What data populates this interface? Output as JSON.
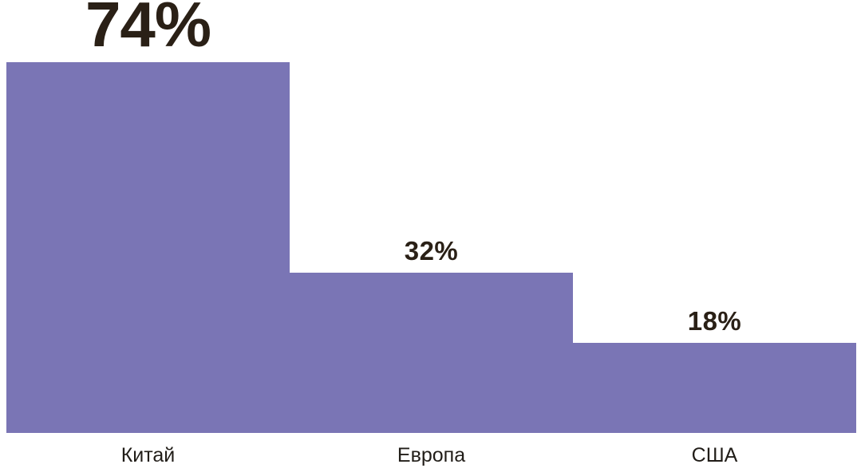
{
  "chart_data": {
    "type": "bar",
    "categories": [
      "Китай",
      "Европа",
      "США"
    ],
    "values": [
      74,
      32,
      18
    ],
    "value_labels": [
      "74%",
      "32%",
      "18%"
    ],
    "title": "",
    "xlabel": "",
    "ylabel": "",
    "ylim": [
      0,
      74
    ],
    "grid": false,
    "legend": false,
    "orientation": "vertical",
    "bars_touching": true,
    "emphasized_index": 0
  },
  "colors": {
    "bar_fill": "#7a75b5",
    "value_label_text": "#2a2016",
    "category_label_text": "#211d18",
    "background": "#ffffff"
  }
}
